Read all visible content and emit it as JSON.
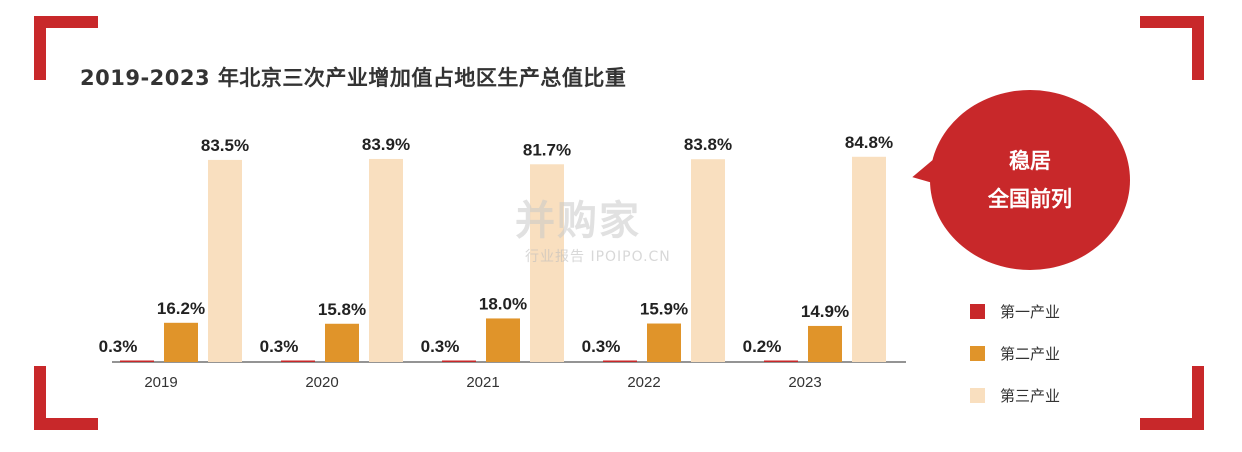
{
  "title": "2019-2023 年北京三次产业增加值占地区生产总值比重",
  "callout": {
    "line1": "稳居",
    "line2": "全国前列"
  },
  "watermark": {
    "main": "并购家",
    "sub": "行业报告 IPOIPO.CN"
  },
  "colors": {
    "accent": "#c8282a",
    "primary": "#c8282a",
    "secondary": "#e0942a",
    "tertiary": "#f9dfbf",
    "axis": "#555555",
    "text": "#333333"
  },
  "chart_data": {
    "type": "bar",
    "title": "2019-2023 年北京三次产业增加值占地区生产总值比重",
    "categories": [
      "2019",
      "2020",
      "2021",
      "2022",
      "2023"
    ],
    "series": [
      {
        "name": "第一产业",
        "values": [
          0.3,
          0.3,
          0.3,
          0.3,
          0.2
        ],
        "labels": [
          "0.3%",
          "0.3%",
          "0.3%",
          "0.3%",
          "0.2%"
        ],
        "color": "#c8282a"
      },
      {
        "name": "第二产业",
        "values": [
          16.2,
          15.8,
          18.0,
          15.9,
          14.9
        ],
        "labels": [
          "16.2%",
          "15.8%",
          "18.0%",
          "15.9%",
          "14.9%"
        ],
        "color": "#e0942a"
      },
      {
        "name": "第三产业",
        "values": [
          83.5,
          83.9,
          81.7,
          83.8,
          84.8
        ],
        "labels": [
          "83.5%",
          "83.9%",
          "81.7%",
          "83.8%",
          "84.8%"
        ],
        "color": "#f9dfbf"
      }
    ],
    "xlabel": "",
    "ylabel": "",
    "ylim": [
      0,
      100
    ],
    "grid": false,
    "legend": "right"
  }
}
